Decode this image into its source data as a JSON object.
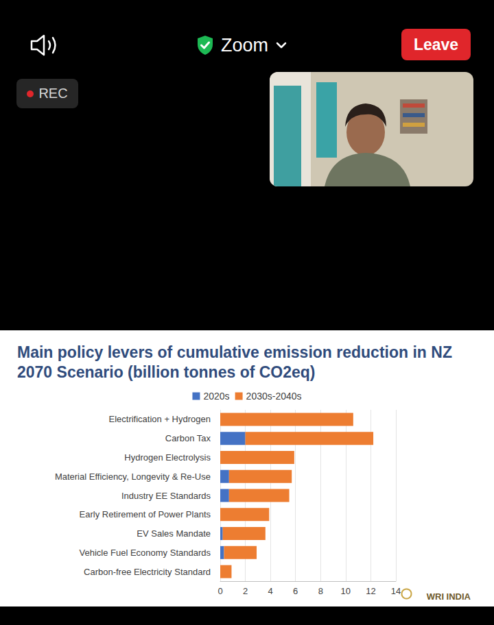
{
  "screen": {
    "app": "Zoom",
    "recording": "REC",
    "button": "Leave"
  },
  "logo": "WRI INDIA",
  "chart_data": {
    "type": "bar",
    "orientation": "horizontal",
    "stacked": true,
    "title": "Main policy levers of cumulative emission reduction in NZ 2070 Scenario (billion tonnes of CO2eq)",
    "categories": [
      "Electrification + Hydrogen",
      "Carbon Tax",
      "Hydrogen Electrolysis",
      "Material Efficiency, Longevity & Re-Use",
      "Industry EE Standards",
      "Early Retirement of Power Plants",
      "EV Sales Mandate",
      "Vehicle Fuel Economy Standards",
      "Carbon-free Electricity Standard"
    ],
    "series": [
      {
        "name": "2020s",
        "color": "#4472c4",
        "values": [
          0,
          2.0,
          0,
          0.7,
          0.7,
          0,
          0.2,
          0.3,
          0
        ]
      },
      {
        "name": "2030s-2040s",
        "color": "#ed7d31",
        "values": [
          10.6,
          10.2,
          5.9,
          5.0,
          4.8,
          3.9,
          3.4,
          2.6,
          0.9
        ]
      }
    ],
    "xlim": [
      0,
      14
    ],
    "xticks": [
      0,
      2,
      4,
      6,
      8,
      10,
      12,
      14
    ],
    "grid": true,
    "legend": "top"
  }
}
